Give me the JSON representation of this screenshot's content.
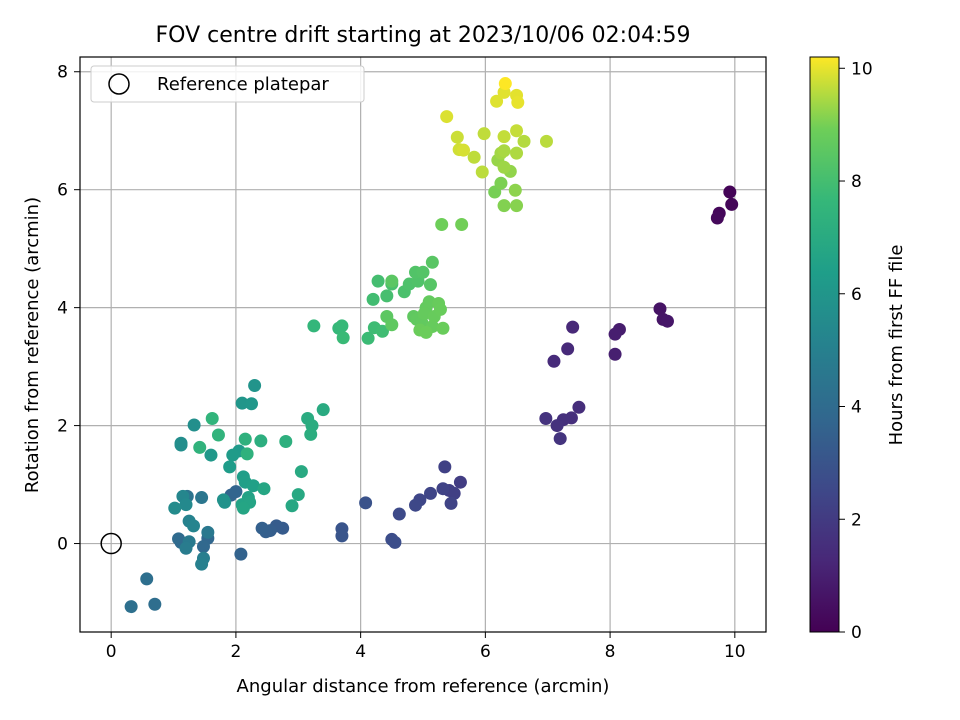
{
  "chart_data": {
    "type": "scatter",
    "title": "FOV centre drift starting at 2023/10/06 02:04:59",
    "xlabel": "Angular distance from reference (arcmin)",
    "ylabel": "Rotation from reference (arcmin)",
    "xlim": [
      -0.5,
      10.5
    ],
    "ylim": [
      -1.5,
      8.25
    ],
    "xticks": [
      0,
      2,
      4,
      6,
      8,
      10
    ],
    "yticks": [
      0,
      2,
      4,
      6,
      8
    ],
    "grid": true,
    "legend": {
      "placement": "top-left",
      "entries": [
        "Reference platepar"
      ]
    },
    "reference_point": {
      "x": 0,
      "y": 0,
      "label": "Reference platepar"
    },
    "colorbar": {
      "label": "Hours from first FF file",
      "colormap": "viridis",
      "range": [
        0,
        10.2
      ],
      "ticks": [
        0,
        2,
        4,
        6,
        8,
        10
      ]
    },
    "points": [
      {
        "x": 9.92,
        "y": 5.96,
        "h": 0.1
      },
      {
        "x": 9.95,
        "y": 5.75,
        "h": 0.15
      },
      {
        "x": 9.75,
        "y": 5.6,
        "h": 0.2
      },
      {
        "x": 9.72,
        "y": 5.52,
        "h": 0.25
      },
      {
        "x": 8.8,
        "y": 3.98,
        "h": 0.6
      },
      {
        "x": 8.85,
        "y": 3.8,
        "h": 0.65
      },
      {
        "x": 8.92,
        "y": 3.77,
        "h": 0.7
      },
      {
        "x": 8.15,
        "y": 3.63,
        "h": 0.9
      },
      {
        "x": 8.08,
        "y": 3.55,
        "h": 0.95
      },
      {
        "x": 8.08,
        "y": 3.21,
        "h": 1.0
      },
      {
        "x": 7.4,
        "y": 3.67,
        "h": 1.3
      },
      {
        "x": 7.32,
        "y": 3.3,
        "h": 1.35
      },
      {
        "x": 7.1,
        "y": 3.09,
        "h": 1.4
      },
      {
        "x": 7.5,
        "y": 2.31,
        "h": 1.5
      },
      {
        "x": 7.38,
        "y": 2.13,
        "h": 1.55
      },
      {
        "x": 7.25,
        "y": 2.1,
        "h": 1.6
      },
      {
        "x": 7.15,
        "y": 2.0,
        "h": 1.65
      },
      {
        "x": 6.97,
        "y": 2.12,
        "h": 1.7
      },
      {
        "x": 7.2,
        "y": 1.78,
        "h": 1.75
      },
      {
        "x": 5.6,
        "y": 1.04,
        "h": 2.1
      },
      {
        "x": 5.42,
        "y": 0.9,
        "h": 2.15
      },
      {
        "x": 5.5,
        "y": 0.85,
        "h": 2.2
      },
      {
        "x": 5.35,
        "y": 1.3,
        "h": 2.25
      },
      {
        "x": 5.32,
        "y": 0.93,
        "h": 2.3
      },
      {
        "x": 5.45,
        "y": 0.68,
        "h": 2.35
      },
      {
        "x": 5.12,
        "y": 0.85,
        "h": 2.4
      },
      {
        "x": 4.95,
        "y": 0.74,
        "h": 2.45
      },
      {
        "x": 4.88,
        "y": 0.65,
        "h": 2.5
      },
      {
        "x": 4.62,
        "y": 0.5,
        "h": 2.6
      },
      {
        "x": 4.5,
        "y": 0.07,
        "h": 2.7
      },
      {
        "x": 4.55,
        "y": 0.02,
        "h": 2.75
      },
      {
        "x": 4.08,
        "y": 0.69,
        "h": 2.9
      },
      {
        "x": 3.7,
        "y": 0.25,
        "h": 3.0
      },
      {
        "x": 3.7,
        "y": 0.13,
        "h": 3.05
      },
      {
        "x": 2.75,
        "y": 0.26,
        "h": 3.3
      },
      {
        "x": 2.65,
        "y": 0.3,
        "h": 3.35
      },
      {
        "x": 2.55,
        "y": 0.22,
        "h": 3.4
      },
      {
        "x": 2.48,
        "y": 0.2,
        "h": 3.45
      },
      {
        "x": 2.42,
        "y": 0.26,
        "h": 3.5
      },
      {
        "x": 2.08,
        "y": -0.18,
        "h": 3.6
      },
      {
        "x": 1.92,
        "y": 0.82,
        "h": 3.65
      },
      {
        "x": 2.0,
        "y": 0.88,
        "h": 3.7
      },
      {
        "x": 1.55,
        "y": 0.09,
        "h": 3.8
      },
      {
        "x": 1.48,
        "y": -0.05,
        "h": 3.85
      },
      {
        "x": 1.12,
        "y": 0.02,
        "h": 3.9
      },
      {
        "x": 1.08,
        "y": 0.08,
        "h": 3.95
      },
      {
        "x": 0.7,
        "y": -1.03,
        "h": 4.1
      },
      {
        "x": 0.57,
        "y": -0.6,
        "h": 4.15
      },
      {
        "x": 0.32,
        "y": -1.07,
        "h": 4.2
      },
      {
        "x": 1.22,
        "y": 0.8,
        "h": 4.4
      },
      {
        "x": 1.45,
        "y": 0.78,
        "h": 4.5
      },
      {
        "x": 1.55,
        "y": 0.19,
        "h": 4.6
      },
      {
        "x": 1.25,
        "y": 0.03,
        "h": 4.7
      },
      {
        "x": 1.2,
        "y": -0.08,
        "h": 4.8
      },
      {
        "x": 1.48,
        "y": -0.25,
        "h": 4.9
      },
      {
        "x": 1.45,
        "y": -0.35,
        "h": 5.0
      },
      {
        "x": 1.25,
        "y": 0.38,
        "h": 5.1
      },
      {
        "x": 1.32,
        "y": 0.3,
        "h": 5.2
      },
      {
        "x": 1.15,
        "y": 0.8,
        "h": 5.3
      },
      {
        "x": 1.2,
        "y": 0.66,
        "h": 5.4
      },
      {
        "x": 1.02,
        "y": 0.6,
        "h": 5.5
      },
      {
        "x": 1.12,
        "y": 1.7,
        "h": 5.6
      },
      {
        "x": 1.12,
        "y": 1.67,
        "h": 5.65
      },
      {
        "x": 1.33,
        "y": 2.01,
        "h": 5.7
      },
      {
        "x": 1.8,
        "y": 0.74,
        "h": 5.8
      },
      {
        "x": 1.82,
        "y": 0.7,
        "h": 5.85
      },
      {
        "x": 2.3,
        "y": 2.68,
        "h": 5.9
      },
      {
        "x": 2.1,
        "y": 2.38,
        "h": 6.0
      },
      {
        "x": 2.25,
        "y": 2.37,
        "h": 6.05
      },
      {
        "x": 1.6,
        "y": 1.5,
        "h": 6.1
      },
      {
        "x": 2.05,
        "y": 1.57,
        "h": 6.2
      },
      {
        "x": 1.95,
        "y": 1.5,
        "h": 6.25
      },
      {
        "x": 1.9,
        "y": 1.3,
        "h": 6.3
      },
      {
        "x": 2.12,
        "y": 1.13,
        "h": 6.4
      },
      {
        "x": 2.15,
        "y": 1.04,
        "h": 6.45
      },
      {
        "x": 2.28,
        "y": 0.98,
        "h": 6.5
      },
      {
        "x": 2.2,
        "y": 0.78,
        "h": 6.6
      },
      {
        "x": 2.1,
        "y": 0.66,
        "h": 6.65
      },
      {
        "x": 2.22,
        "y": 0.7,
        "h": 6.7
      },
      {
        "x": 2.12,
        "y": 0.6,
        "h": 6.75
      },
      {
        "x": 2.45,
        "y": 0.93,
        "h": 6.8
      },
      {
        "x": 2.9,
        "y": 0.64,
        "h": 6.85
      },
      {
        "x": 3.0,
        "y": 0.83,
        "h": 6.9
      },
      {
        "x": 3.05,
        "y": 1.22,
        "h": 6.95
      },
      {
        "x": 3.4,
        "y": 2.27,
        "h": 7.0
      },
      {
        "x": 3.15,
        "y": 2.12,
        "h": 7.05
      },
      {
        "x": 3.22,
        "y": 2.0,
        "h": 7.1
      },
      {
        "x": 3.2,
        "y": 1.85,
        "h": 7.15
      },
      {
        "x": 2.4,
        "y": 1.74,
        "h": 7.2
      },
      {
        "x": 2.8,
        "y": 1.73,
        "h": 7.25
      },
      {
        "x": 2.15,
        "y": 1.77,
        "h": 7.3
      },
      {
        "x": 2.18,
        "y": 1.52,
        "h": 7.35
      },
      {
        "x": 1.42,
        "y": 1.63,
        "h": 7.4
      },
      {
        "x": 1.72,
        "y": 1.84,
        "h": 7.45
      },
      {
        "x": 1.62,
        "y": 2.12,
        "h": 7.5
      },
      {
        "x": 3.25,
        "y": 3.69,
        "h": 7.6
      },
      {
        "x": 3.65,
        "y": 3.65,
        "h": 7.65
      },
      {
        "x": 3.7,
        "y": 3.69,
        "h": 7.7
      },
      {
        "x": 3.72,
        "y": 3.49,
        "h": 7.75
      },
      {
        "x": 4.12,
        "y": 3.48,
        "h": 7.8
      },
      {
        "x": 4.22,
        "y": 3.66,
        "h": 7.85
      },
      {
        "x": 4.35,
        "y": 3.6,
        "h": 7.9
      },
      {
        "x": 4.2,
        "y": 4.14,
        "h": 7.95
      },
      {
        "x": 4.28,
        "y": 4.45,
        "h": 8.0
      },
      {
        "x": 4.42,
        "y": 4.2,
        "h": 8.05
      },
      {
        "x": 4.5,
        "y": 4.4,
        "h": 8.1
      },
      {
        "x": 4.7,
        "y": 4.27,
        "h": 8.15
      },
      {
        "x": 4.78,
        "y": 4.4,
        "h": 8.2
      },
      {
        "x": 4.92,
        "y": 4.45,
        "h": 8.25
      },
      {
        "x": 4.88,
        "y": 4.6,
        "h": 8.3
      },
      {
        "x": 5.0,
        "y": 4.6,
        "h": 8.35
      },
      {
        "x": 5.12,
        "y": 4.39,
        "h": 8.4
      },
      {
        "x": 5.15,
        "y": 4.77,
        "h": 8.45
      },
      {
        "x": 4.5,
        "y": 4.45,
        "h": 8.5
      },
      {
        "x": 4.42,
        "y": 3.85,
        "h": 8.55
      },
      {
        "x": 4.5,
        "y": 3.71,
        "h": 8.6
      },
      {
        "x": 4.85,
        "y": 3.85,
        "h": 8.62
      },
      {
        "x": 4.9,
        "y": 3.8,
        "h": 8.64
      },
      {
        "x": 4.98,
        "y": 3.75,
        "h": 8.66
      },
      {
        "x": 5.05,
        "y": 4.0,
        "h": 8.68
      },
      {
        "x": 5.1,
        "y": 4.1,
        "h": 8.7
      },
      {
        "x": 5.02,
        "y": 3.9,
        "h": 8.72
      },
      {
        "x": 5.15,
        "y": 3.68,
        "h": 8.74
      },
      {
        "x": 5.18,
        "y": 3.85,
        "h": 8.76
      },
      {
        "x": 5.25,
        "y": 4.07,
        "h": 8.78
      },
      {
        "x": 5.28,
        "y": 3.97,
        "h": 8.8
      },
      {
        "x": 5.32,
        "y": 3.65,
        "h": 8.82
      },
      {
        "x": 4.95,
        "y": 3.62,
        "h": 8.84
      },
      {
        "x": 5.05,
        "y": 3.58,
        "h": 8.86
      },
      {
        "x": 5.3,
        "y": 5.41,
        "h": 8.9
      },
      {
        "x": 5.62,
        "y": 5.41,
        "h": 8.95
      },
      {
        "x": 6.15,
        "y": 5.96,
        "h": 9.0
      },
      {
        "x": 6.25,
        "y": 6.11,
        "h": 9.05
      },
      {
        "x": 6.3,
        "y": 5.73,
        "h": 9.1
      },
      {
        "x": 6.5,
        "y": 5.73,
        "h": 9.15
      },
      {
        "x": 6.48,
        "y": 5.99,
        "h": 9.2
      },
      {
        "x": 6.4,
        "y": 6.31,
        "h": 9.25
      },
      {
        "x": 6.2,
        "y": 6.5,
        "h": 9.3
      },
      {
        "x": 6.3,
        "y": 6.38,
        "h": 9.35
      },
      {
        "x": 6.25,
        "y": 6.62,
        "h": 9.4
      },
      {
        "x": 6.3,
        "y": 6.66,
        "h": 9.45
      },
      {
        "x": 6.5,
        "y": 6.62,
        "h": 9.5
      },
      {
        "x": 6.62,
        "y": 6.82,
        "h": 9.55
      },
      {
        "x": 6.98,
        "y": 6.82,
        "h": 9.6
      },
      {
        "x": 5.95,
        "y": 6.3,
        "h": 9.62
      },
      {
        "x": 5.82,
        "y": 6.55,
        "h": 9.64
      },
      {
        "x": 5.98,
        "y": 6.95,
        "h": 9.66
      },
      {
        "x": 6.3,
        "y": 6.9,
        "h": 9.68
      },
      {
        "x": 6.5,
        "y": 7.0,
        "h": 9.7
      },
      {
        "x": 5.55,
        "y": 6.89,
        "h": 9.75
      },
      {
        "x": 5.58,
        "y": 6.68,
        "h": 9.8
      },
      {
        "x": 5.65,
        "y": 6.67,
        "h": 9.85
      },
      {
        "x": 5.38,
        "y": 7.24,
        "h": 9.9
      },
      {
        "x": 6.18,
        "y": 7.5,
        "h": 9.92
      },
      {
        "x": 6.3,
        "y": 7.65,
        "h": 9.95
      },
      {
        "x": 6.5,
        "y": 7.6,
        "h": 9.97
      },
      {
        "x": 6.52,
        "y": 7.48,
        "h": 10.0
      },
      {
        "x": 6.32,
        "y": 7.8,
        "h": 10.2
      }
    ]
  }
}
